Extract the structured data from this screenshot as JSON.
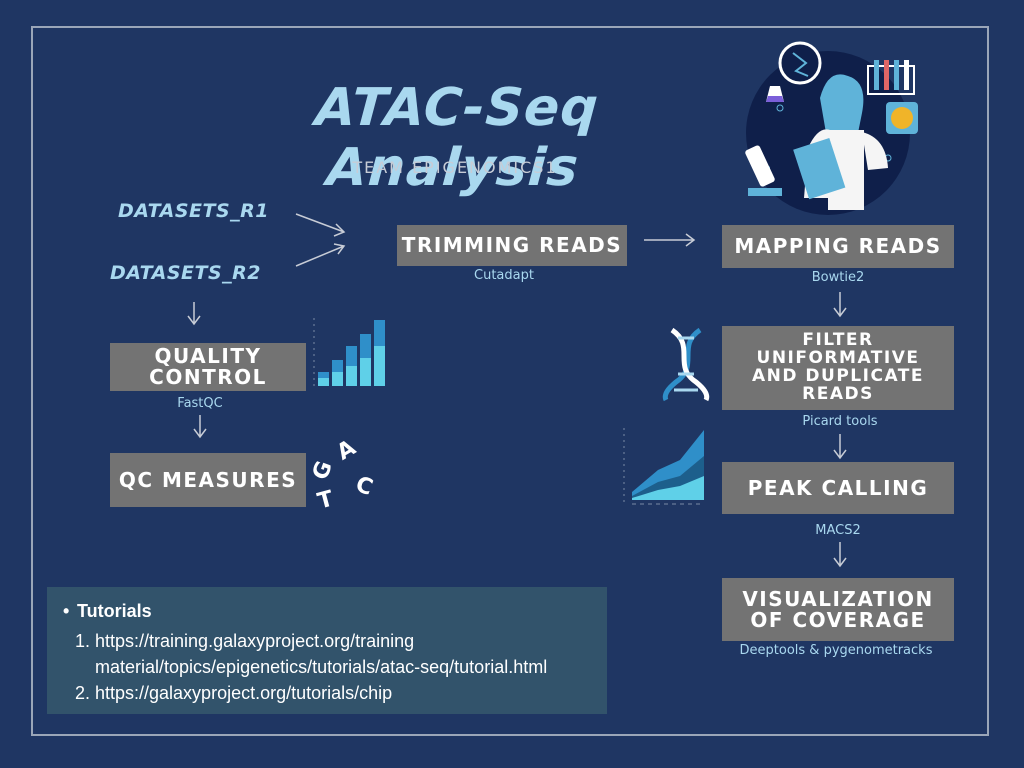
{
  "title": "ATAC-Seq Analysis",
  "subtitle": "TEAM EPIGENOMICS1",
  "datasets": [
    "DATASETS_R1",
    "DATASETS_R2"
  ],
  "steps": {
    "trimming": {
      "label": "TRIMMING READS",
      "tool": "Cutadapt"
    },
    "mapping": {
      "label": "MAPPING READS",
      "tool": "Bowtie2"
    },
    "filter": {
      "label": "FILTER UNIFORMATIVE AND DUPLICATE READS",
      "tool": "Picard tools"
    },
    "peak": {
      "label": "PEAK CALLING",
      "tool": "MACS2"
    },
    "visualization": {
      "label": "VISUALIZATION OF COVERAGE",
      "tool": "Deeptools & pygenometracks"
    },
    "quality": {
      "label": "QUALITY CONTROL",
      "tool": "FastQC"
    },
    "qc_measures": {
      "label": "QC MEASURES"
    }
  },
  "decor_letters": [
    "G",
    "A",
    "C",
    "T"
  ],
  "tutorials": {
    "heading": "Tutorials",
    "links": [
      "https://training.galaxyproject.org/training material/topics/epigenetics/tutorials/atac-seq/tutorial.html",
      "https://galaxyproject.org/tutorials/chip"
    ]
  },
  "colors": {
    "background": "#1f3663",
    "box": "#737373",
    "accent": "#a9d8ef",
    "tutorial_bg": "#32536b"
  }
}
